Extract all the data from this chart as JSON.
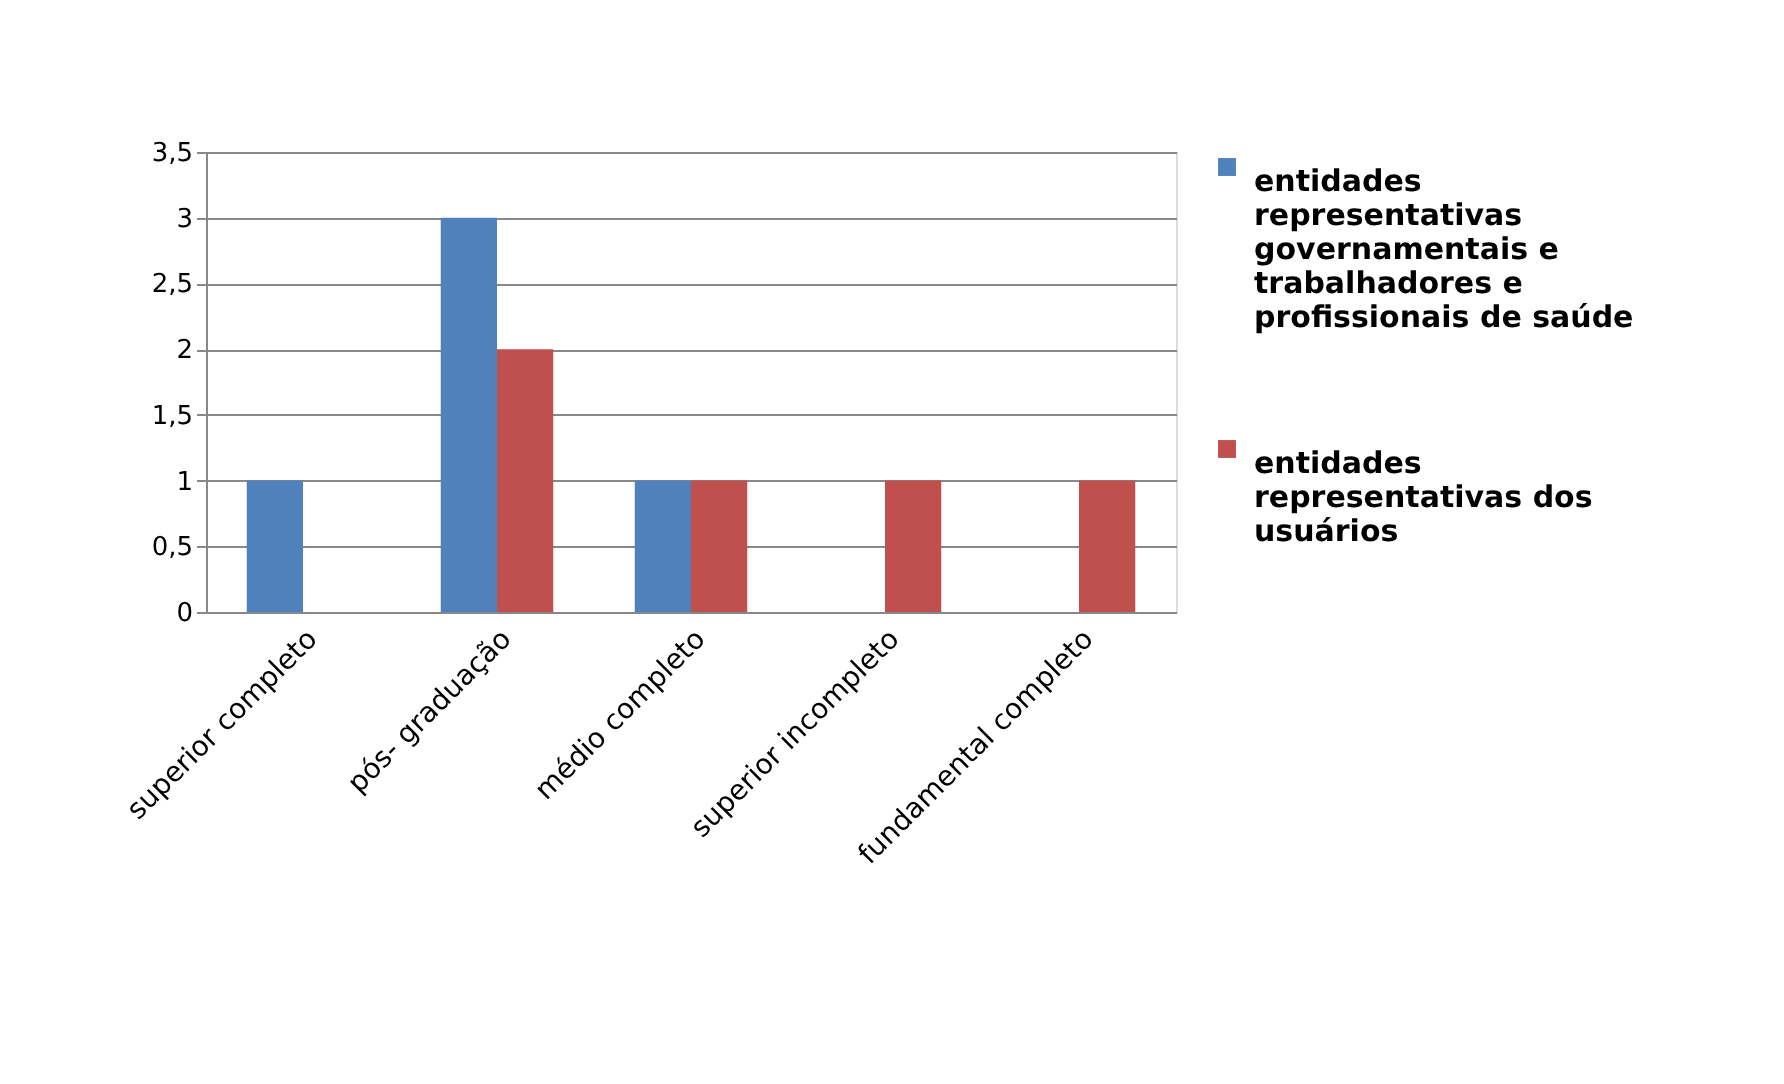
{
  "chart_data": {
    "type": "bar",
    "categories": [
      "superior completo",
      "pós- graduação",
      "médio completo",
      "superior incompleto",
      "fundamental completo"
    ],
    "series": [
      {
        "name": "entidades representativas governamentais e trabalhadores e profissionais de saúde",
        "color": "#4f81bd",
        "values": [
          1,
          3,
          1,
          null,
          null
        ]
      },
      {
        "name": "entidades representativas dos usuários",
        "color": "#c0504d",
        "values": [
          null,
          2,
          1,
          1,
          1
        ]
      }
    ],
    "ylim": [
      0,
      3.5
    ],
    "yticks": [
      0,
      {
        "value": 0.5,
        "label": "0,5"
      },
      1,
      {
        "value": 1.5,
        "label": "1,5"
      },
      2,
      {
        "value": 2.5,
        "label": "2,5"
      },
      3,
      {
        "value": 3.5,
        "label": "3,5"
      }
    ],
    "grid": "y",
    "legend": "right"
  }
}
